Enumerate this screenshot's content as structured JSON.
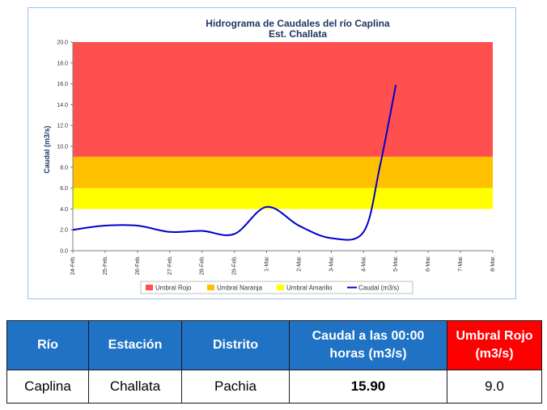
{
  "chart_data": {
    "type": "line",
    "title": "Hidrograma de Caudales del río Caplina",
    "subtitle": "Est. Challata",
    "ylabel": "Caudal (m3/s)",
    "xlabel": "",
    "ylim": [
      0,
      20
    ],
    "yticks": [
      "0.0",
      "2.0",
      "4.0",
      "6.0",
      "8.0",
      "10.0",
      "12.0",
      "14.0",
      "16.0",
      "18.0",
      "20.0"
    ],
    "categories": [
      "24-Feb.",
      "25-Feb.",
      "26-Feb.",
      "27-Feb.",
      "28-Feb.",
      "29-Feb.",
      "1-Mar.",
      "2-Mar.",
      "3-Mar.",
      "4-Mar.",
      "5-Mar.",
      "6-Mar.",
      "7-Mar.",
      "8-Mar."
    ],
    "bands": [
      {
        "name": "Umbral Rojo",
        "from": 9.0,
        "to": 20.0,
        "color": "#ff5050"
      },
      {
        "name": "Umbral Naranja",
        "from": 6.0,
        "to": 9.0,
        "color": "#ffc000"
      },
      {
        "name": "Umbral Amarillo",
        "from": 4.0,
        "to": 6.0,
        "color": "#ffff00"
      }
    ],
    "series": [
      {
        "name": "Caudal (m3/s)",
        "color": "#0000cc",
        "points": [
          [
            0,
            2.0
          ],
          [
            1,
            2.4
          ],
          [
            2,
            2.4
          ],
          [
            3,
            1.8
          ],
          [
            4,
            1.9
          ],
          [
            5,
            1.6
          ],
          [
            6,
            4.2
          ],
          [
            7,
            2.4
          ],
          [
            8,
            1.2
          ],
          [
            9,
            1.8
          ],
          [
            9.5,
            8.0
          ],
          [
            10,
            15.9
          ]
        ]
      }
    ],
    "legend": "bottom",
    "grid": false
  },
  "table": {
    "headers": [
      "Río",
      "Estación",
      "Distrito",
      "Caudal a las 00:00 horas (m3/s)",
      "Umbral Rojo (m3/s)"
    ],
    "row": [
      "Caplina",
      "Challata",
      "Pachia",
      "15.90",
      "9.0"
    ]
  }
}
